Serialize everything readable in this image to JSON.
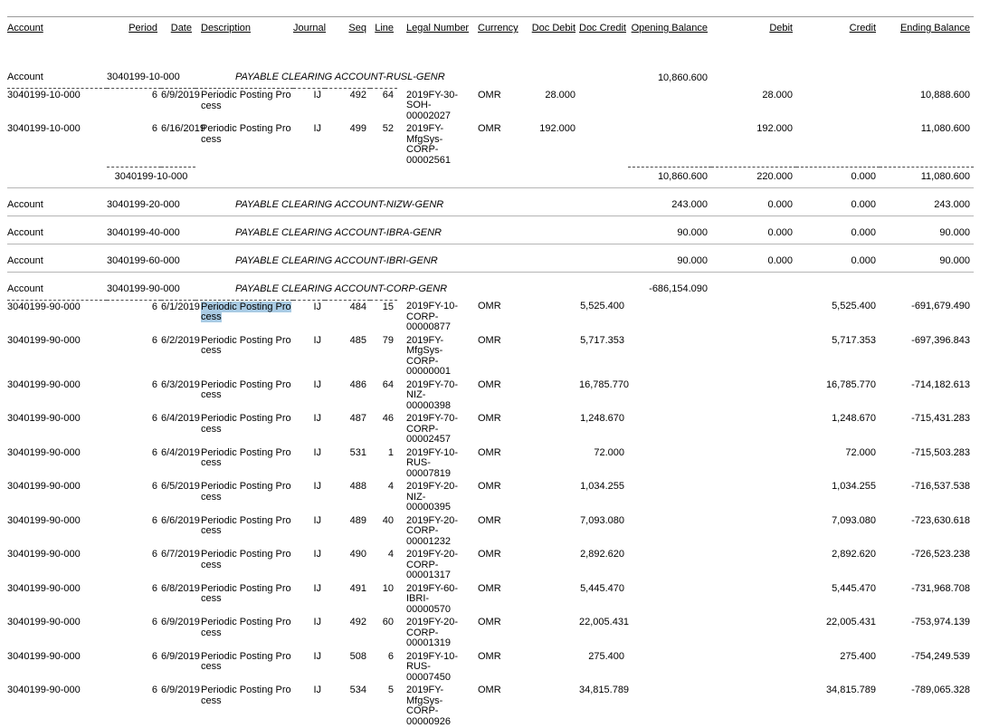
{
  "report": {
    "colors": {
      "selection_highlight": "#a9cbe4"
    },
    "columns": [
      {
        "key": "account",
        "label": "Account",
        "align": "left"
      },
      {
        "key": "period",
        "label": "Period",
        "align": "right"
      },
      {
        "key": "date",
        "label": "Date",
        "align": "right"
      },
      {
        "key": "description",
        "label": "Description",
        "align": "left"
      },
      {
        "key": "journal",
        "label": "Journal",
        "align": "right"
      },
      {
        "key": "seq",
        "label": "Seq",
        "align": "right"
      },
      {
        "key": "line",
        "label": "Line",
        "align": "right"
      },
      {
        "key": "legal_number",
        "label": "Legal Number",
        "align": "left"
      },
      {
        "key": "currency",
        "label": "Currency",
        "align": "left"
      },
      {
        "key": "doc_debit",
        "label": "Doc Debit",
        "align": "right"
      },
      {
        "key": "doc_credit",
        "label": "Doc Credit",
        "align": "right"
      },
      {
        "key": "opening_balance",
        "label": "Opening Balance",
        "align": "right"
      },
      {
        "key": "debit",
        "label": "Debit",
        "align": "right"
      },
      {
        "key": "credit",
        "label": "Credit",
        "align": "right"
      },
      {
        "key": "ending_balance",
        "label": "Ending Balance",
        "align": "right"
      }
    ],
    "sections": [
      {
        "row_label": "Account",
        "account": "3040199-10-000",
        "name": "PAYABLE CLEARING ACCOUNT-RUSL-GENR",
        "opening_balance": "10,860.600",
        "rows": [
          {
            "account": "3040199-10-000",
            "period": "6",
            "date": "6/9/2019",
            "description": "Periodic Posting Pro\ncess",
            "journal": "IJ",
            "seq": "492",
            "line": "64",
            "legal_number": "2019FY-30-SOH-\n00002027",
            "currency": "OMR",
            "doc_debit": "28.000",
            "doc_credit": "",
            "opening_balance": "",
            "debit": "28.000",
            "credit": "",
            "ending_balance": "10,888.600",
            "highlighted": false
          },
          {
            "account": "3040199-10-000",
            "period": "6",
            "date": "6/16/2019",
            "description": "Periodic Posting Pro\ncess",
            "journal": "IJ",
            "seq": "499",
            "line": "52",
            "legal_number": "2019FY-MfgSys-\nCORP-00002561",
            "currency": "OMR",
            "doc_debit": "192.000",
            "doc_credit": "",
            "opening_balance": "",
            "debit": "192.000",
            "credit": "",
            "ending_balance": "11,080.600",
            "highlighted": false
          }
        ],
        "totals": {
          "label": "3040199-10-000",
          "opening_balance": "10,860.600",
          "debit": "220.000",
          "credit": "0.000",
          "ending_balance": "11,080.600"
        }
      },
      {
        "row_label": "Account",
        "account": "3040199-20-000",
        "name": "PAYABLE CLEARING ACCOUNT-NIZW-GENR",
        "opening_balance": "243.000",
        "debit": "0.000",
        "credit": "0.000",
        "ending_balance": "243.000"
      },
      {
        "row_label": "Account",
        "account": "3040199-40-000",
        "name": "PAYABLE CLEARING ACCOUNT-IBRA-GENR",
        "opening_balance": "90.000",
        "debit": "0.000",
        "credit": "0.000",
        "ending_balance": "90.000"
      },
      {
        "row_label": "Account",
        "account": "3040199-60-000",
        "name": "PAYABLE CLEARING ACCOUNT-IBRI-GENR",
        "opening_balance": "90.000",
        "debit": "0.000",
        "credit": "0.000",
        "ending_balance": "90.000"
      },
      {
        "row_label": "Account",
        "account": "3040199-90-000",
        "name": "PAYABLE CLEARING ACCOUNT-CORP-GENR",
        "opening_balance": "-686,154.090",
        "rows": [
          {
            "account": "3040199-90-000",
            "period": "6",
            "date": "6/1/2019",
            "description": "Periodic Posting Pro\ncess",
            "journal": "IJ",
            "seq": "484",
            "line": "15",
            "legal_number": "2019FY-10-CORP-\n00000877",
            "currency": "OMR",
            "doc_debit": "",
            "doc_credit": "5,525.400",
            "opening_balance": "",
            "debit": "",
            "credit": "5,525.400",
            "ending_balance": "-691,679.490",
            "highlighted": true
          },
          {
            "account": "3040199-90-000",
            "period": "6",
            "date": "6/2/2019",
            "description": "Periodic Posting Pro\ncess",
            "journal": "IJ",
            "seq": "485",
            "line": "79",
            "legal_number": "2019FY-MfgSys-\nCORP-00000001",
            "currency": "OMR",
            "doc_debit": "",
            "doc_credit": "5,717.353",
            "opening_balance": "",
            "debit": "",
            "credit": "5,717.353",
            "ending_balance": "-697,396.843",
            "highlighted": false
          },
          {
            "account": "3040199-90-000",
            "period": "6",
            "date": "6/3/2019",
            "description": "Periodic Posting Pro\ncess",
            "journal": "IJ",
            "seq": "486",
            "line": "64",
            "legal_number": "2019FY-70-NIZ-\n00000398",
            "currency": "OMR",
            "doc_debit": "",
            "doc_credit": "16,785.770",
            "opening_balance": "",
            "debit": "",
            "credit": "16,785.770",
            "ending_balance": "-714,182.613",
            "highlighted": false
          },
          {
            "account": "3040199-90-000",
            "period": "6",
            "date": "6/4/2019",
            "description": "Periodic Posting Pro\ncess",
            "journal": "IJ",
            "seq": "487",
            "line": "46",
            "legal_number": "2019FY-70-CORP-\n00002457",
            "currency": "OMR",
            "doc_debit": "",
            "doc_credit": "1,248.670",
            "opening_balance": "",
            "debit": "",
            "credit": "1,248.670",
            "ending_balance": "-715,431.283",
            "highlighted": false
          },
          {
            "account": "3040199-90-000",
            "period": "6",
            "date": "6/4/2019",
            "description": "Periodic Posting Pro\ncess",
            "journal": "IJ",
            "seq": "531",
            "line": "1",
            "legal_number": "2019FY-10-RUS-\n00007819",
            "currency": "OMR",
            "doc_debit": "",
            "doc_credit": "72.000",
            "opening_balance": "",
            "debit": "",
            "credit": "72.000",
            "ending_balance": "-715,503.283",
            "highlighted": false
          },
          {
            "account": "3040199-90-000",
            "period": "6",
            "date": "6/5/2019",
            "description": "Periodic Posting Pro\ncess",
            "journal": "IJ",
            "seq": "488",
            "line": "4",
            "legal_number": "2019FY-20-NIZ-\n00000395",
            "currency": "OMR",
            "doc_debit": "",
            "doc_credit": "1,034.255",
            "opening_balance": "",
            "debit": "",
            "credit": "1,034.255",
            "ending_balance": "-716,537.538",
            "highlighted": false
          },
          {
            "account": "3040199-90-000",
            "period": "6",
            "date": "6/6/2019",
            "description": "Periodic Posting Pro\ncess",
            "journal": "IJ",
            "seq": "489",
            "line": "40",
            "legal_number": "2019FY-20-CORP-\n00001232",
            "currency": "OMR",
            "doc_debit": "",
            "doc_credit": "7,093.080",
            "opening_balance": "",
            "debit": "",
            "credit": "7,093.080",
            "ending_balance": "-723,630.618",
            "highlighted": false
          },
          {
            "account": "3040199-90-000",
            "period": "6",
            "date": "6/7/2019",
            "description": "Periodic Posting Pro\ncess",
            "journal": "IJ",
            "seq": "490",
            "line": "4",
            "legal_number": "2019FY-20-CORP-\n00001317",
            "currency": "OMR",
            "doc_debit": "",
            "doc_credit": "2,892.620",
            "opening_balance": "",
            "debit": "",
            "credit": "2,892.620",
            "ending_balance": "-726,523.238",
            "highlighted": false
          },
          {
            "account": "3040199-90-000",
            "period": "6",
            "date": "6/8/2019",
            "description": "Periodic Posting Pro\ncess",
            "journal": "IJ",
            "seq": "491",
            "line": "10",
            "legal_number": "2019FY-60-IBRI-\n00000570",
            "currency": "OMR",
            "doc_debit": "",
            "doc_credit": "5,445.470",
            "opening_balance": "",
            "debit": "",
            "credit": "5,445.470",
            "ending_balance": "-731,968.708",
            "highlighted": false
          },
          {
            "account": "3040199-90-000",
            "period": "6",
            "date": "6/9/2019",
            "description": "Periodic Posting Pro\ncess",
            "journal": "IJ",
            "seq": "492",
            "line": "60",
            "legal_number": "2019FY-20-CORP-\n00001319",
            "currency": "OMR",
            "doc_debit": "",
            "doc_credit": "22,005.431",
            "opening_balance": "",
            "debit": "",
            "credit": "22,005.431",
            "ending_balance": "-753,974.139",
            "highlighted": false
          },
          {
            "account": "3040199-90-000",
            "period": "6",
            "date": "6/9/2019",
            "description": "Periodic Posting Pro\ncess",
            "journal": "IJ",
            "seq": "508",
            "line": "6",
            "legal_number": "2019FY-10-RUS-\n00007450",
            "currency": "OMR",
            "doc_debit": "",
            "doc_credit": "275.400",
            "opening_balance": "",
            "debit": "",
            "credit": "275.400",
            "ending_balance": "-754,249.539",
            "highlighted": false
          },
          {
            "account": "3040199-90-000",
            "period": "6",
            "date": "6/9/2019",
            "description": "Periodic Posting Pro\ncess",
            "journal": "IJ",
            "seq": "534",
            "line": "5",
            "legal_number": "2019FY-MfgSys-\nCORP-00000926",
            "currency": "OMR",
            "doc_debit": "",
            "doc_credit": "34,815.789",
            "opening_balance": "",
            "debit": "",
            "credit": "34,815.789",
            "ending_balance": "-789,065.328",
            "highlighted": false
          }
        ],
        "totals": null
      }
    ]
  }
}
